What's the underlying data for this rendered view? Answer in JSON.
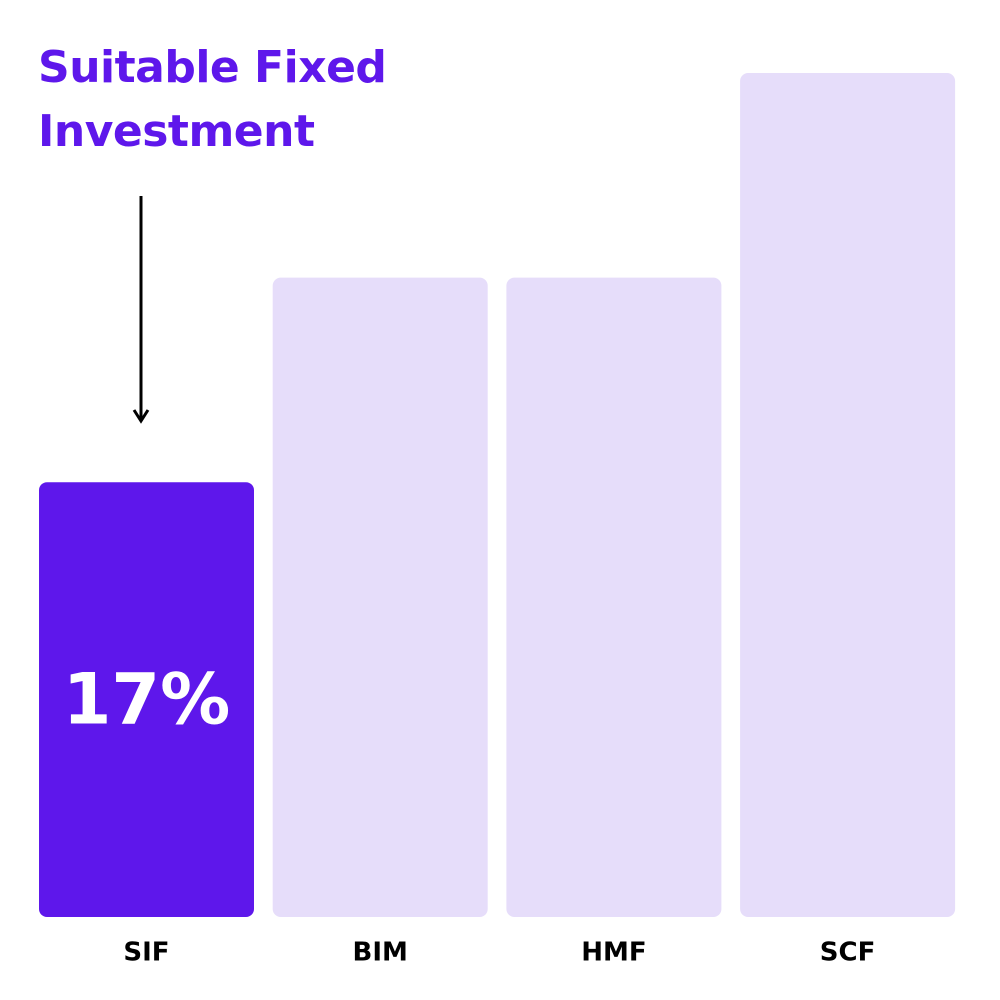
{
  "chart_data": {
    "type": "bar",
    "title": "Suitable Fixed Investment",
    "categories": [
      "SIF",
      "BIM",
      "HMF",
      "SCF"
    ],
    "values": [
      17,
      25,
      25,
      33
    ],
    "value_labels": [
      "17%",
      null,
      null,
      null
    ],
    "colors": [
      "#5e17eb",
      "#e6ddfa",
      "#e6ddfa",
      "#e6ddfa"
    ],
    "title_color": "#5e17eb"
  }
}
